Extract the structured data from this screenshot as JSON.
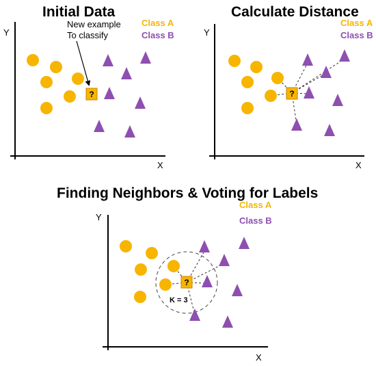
{
  "colors": {
    "class_a": "#F7B500",
    "class_b": "#8E4FB0",
    "query_fill": "#F7B500",
    "query_border": "#C98600",
    "axis": "#000000",
    "dashed": "#333333"
  },
  "panels": {
    "initial": {
      "title": "Initial Data",
      "legend_a": "Class A",
      "legend_b": "Class B",
      "annotation_line1": "New example",
      "annotation_line2": "To classify",
      "y_label": "Y",
      "x_label": "X",
      "query_mark": "?"
    },
    "distance": {
      "title": "Calculate Distance",
      "legend_a": "Class A",
      "legend_b": "Class B",
      "y_label": "Y",
      "x_label": "X",
      "query_mark": "?"
    },
    "voting": {
      "title": "Finding Neighbors & Voting for Labels",
      "legend_a": "Class A",
      "legend_b": "Class B",
      "y_label": "Y",
      "x_label": "X",
      "query_mark": "?",
      "k_label": "K = 3"
    }
  }
}
